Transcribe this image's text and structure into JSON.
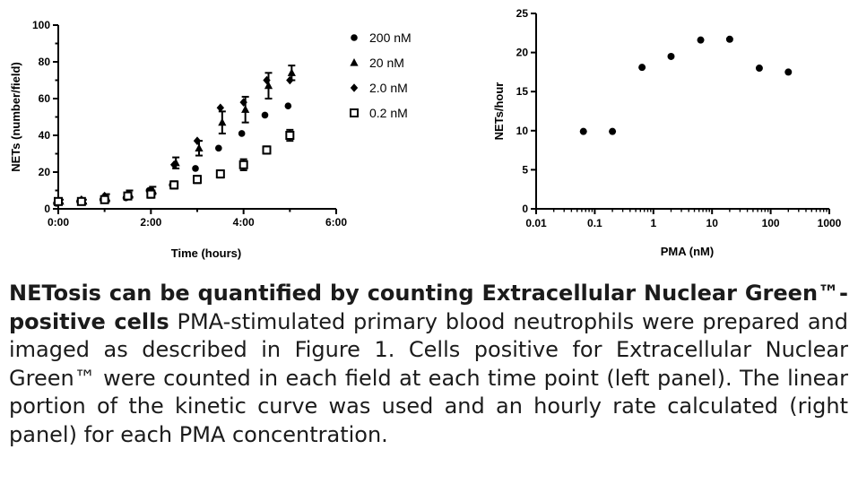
{
  "chart_data": [
    {
      "type": "scatter",
      "xlabel": "Time (hours)",
      "ylabel": "NETs (number/field)",
      "xlim": [
        0,
        6
      ],
      "ylim": [
        0,
        100
      ],
      "x_ticks": [
        "0:00",
        "2:00",
        "4:00",
        "6:00"
      ],
      "y_ticks": [
        "0",
        "20",
        "40",
        "60",
        "80",
        "100"
      ],
      "error_bars": true,
      "legend_position": "top-right",
      "series": [
        {
          "name": "200 nM",
          "marker": "circle",
          "x": [
            0,
            0.5,
            1,
            1.5,
            2,
            2.5,
            3,
            3.5,
            4,
            4.5,
            5
          ],
          "y": [
            3,
            4,
            5,
            6,
            10,
            13,
            22,
            33,
            41,
            51,
            56
          ]
        },
        {
          "name": "20 nM",
          "marker": "triangle",
          "x": [
            0,
            0.5,
            1,
            1.5,
            2,
            2.5,
            3,
            3.5,
            4,
            4.5,
            5
          ],
          "y": [
            4,
            4,
            6,
            8,
            10,
            25,
            33,
            47,
            54,
            67,
            74
          ],
          "err": [
            1,
            1,
            2,
            2,
            2,
            3,
            4,
            6,
            7,
            7,
            4
          ]
        },
        {
          "name": "2.0 nM",
          "marker": "diamond",
          "x": [
            0,
            0.5,
            1,
            1.5,
            2,
            2.5,
            3,
            3.5,
            4,
            4.5,
            5
          ],
          "y": [
            4,
            5,
            7,
            8,
            10,
            24,
            37,
            55,
            58,
            70,
            70
          ]
        },
        {
          "name": "0.2 nM",
          "marker": "square",
          "x": [
            0,
            0.5,
            1,
            1.5,
            2,
            2.5,
            3,
            3.5,
            4,
            4.5,
            5
          ],
          "y": [
            4,
            4,
            5,
            7,
            8,
            13,
            16,
            19,
            24,
            32,
            40
          ],
          "err": [
            1,
            1,
            1,
            1,
            2,
            2,
            2,
            2,
            3,
            2,
            3
          ]
        }
      ]
    },
    {
      "type": "scatter",
      "xlabel": "PMA (nM)",
      "ylabel": "NETs/hour",
      "xscale": "log",
      "xlim": [
        0.01,
        1000
      ],
      "ylim": [
        0,
        25
      ],
      "x_ticks": [
        "0.01",
        "0.1",
        "1",
        "10",
        "100",
        "1000"
      ],
      "y_ticks": [
        "0",
        "5",
        "10",
        "15",
        "20",
        "25"
      ],
      "series": [
        {
          "marker": "circle",
          "x": [
            0.064,
            0.2,
            0.64,
            2,
            6.4,
            20,
            64,
            200
          ],
          "y": [
            9.9,
            9.9,
            18.1,
            19.5,
            21.6,
            21.7,
            18.0,
            17.5
          ]
        }
      ]
    }
  ],
  "caption": {
    "bold_part": "NETosis can be quantified by counting Extracellular Nuclear Green™-positive cells",
    "body": " PMA-stimulated primary blood neutrophils were prepared and imaged as described in Figure 1. Cells positive for Extracellular Nuclear Green™ were counted in each field at each time point (left panel). The linear portion of the kinetic curve was used and an hourly rate calculated (right panel) for each PMA concentration."
  }
}
